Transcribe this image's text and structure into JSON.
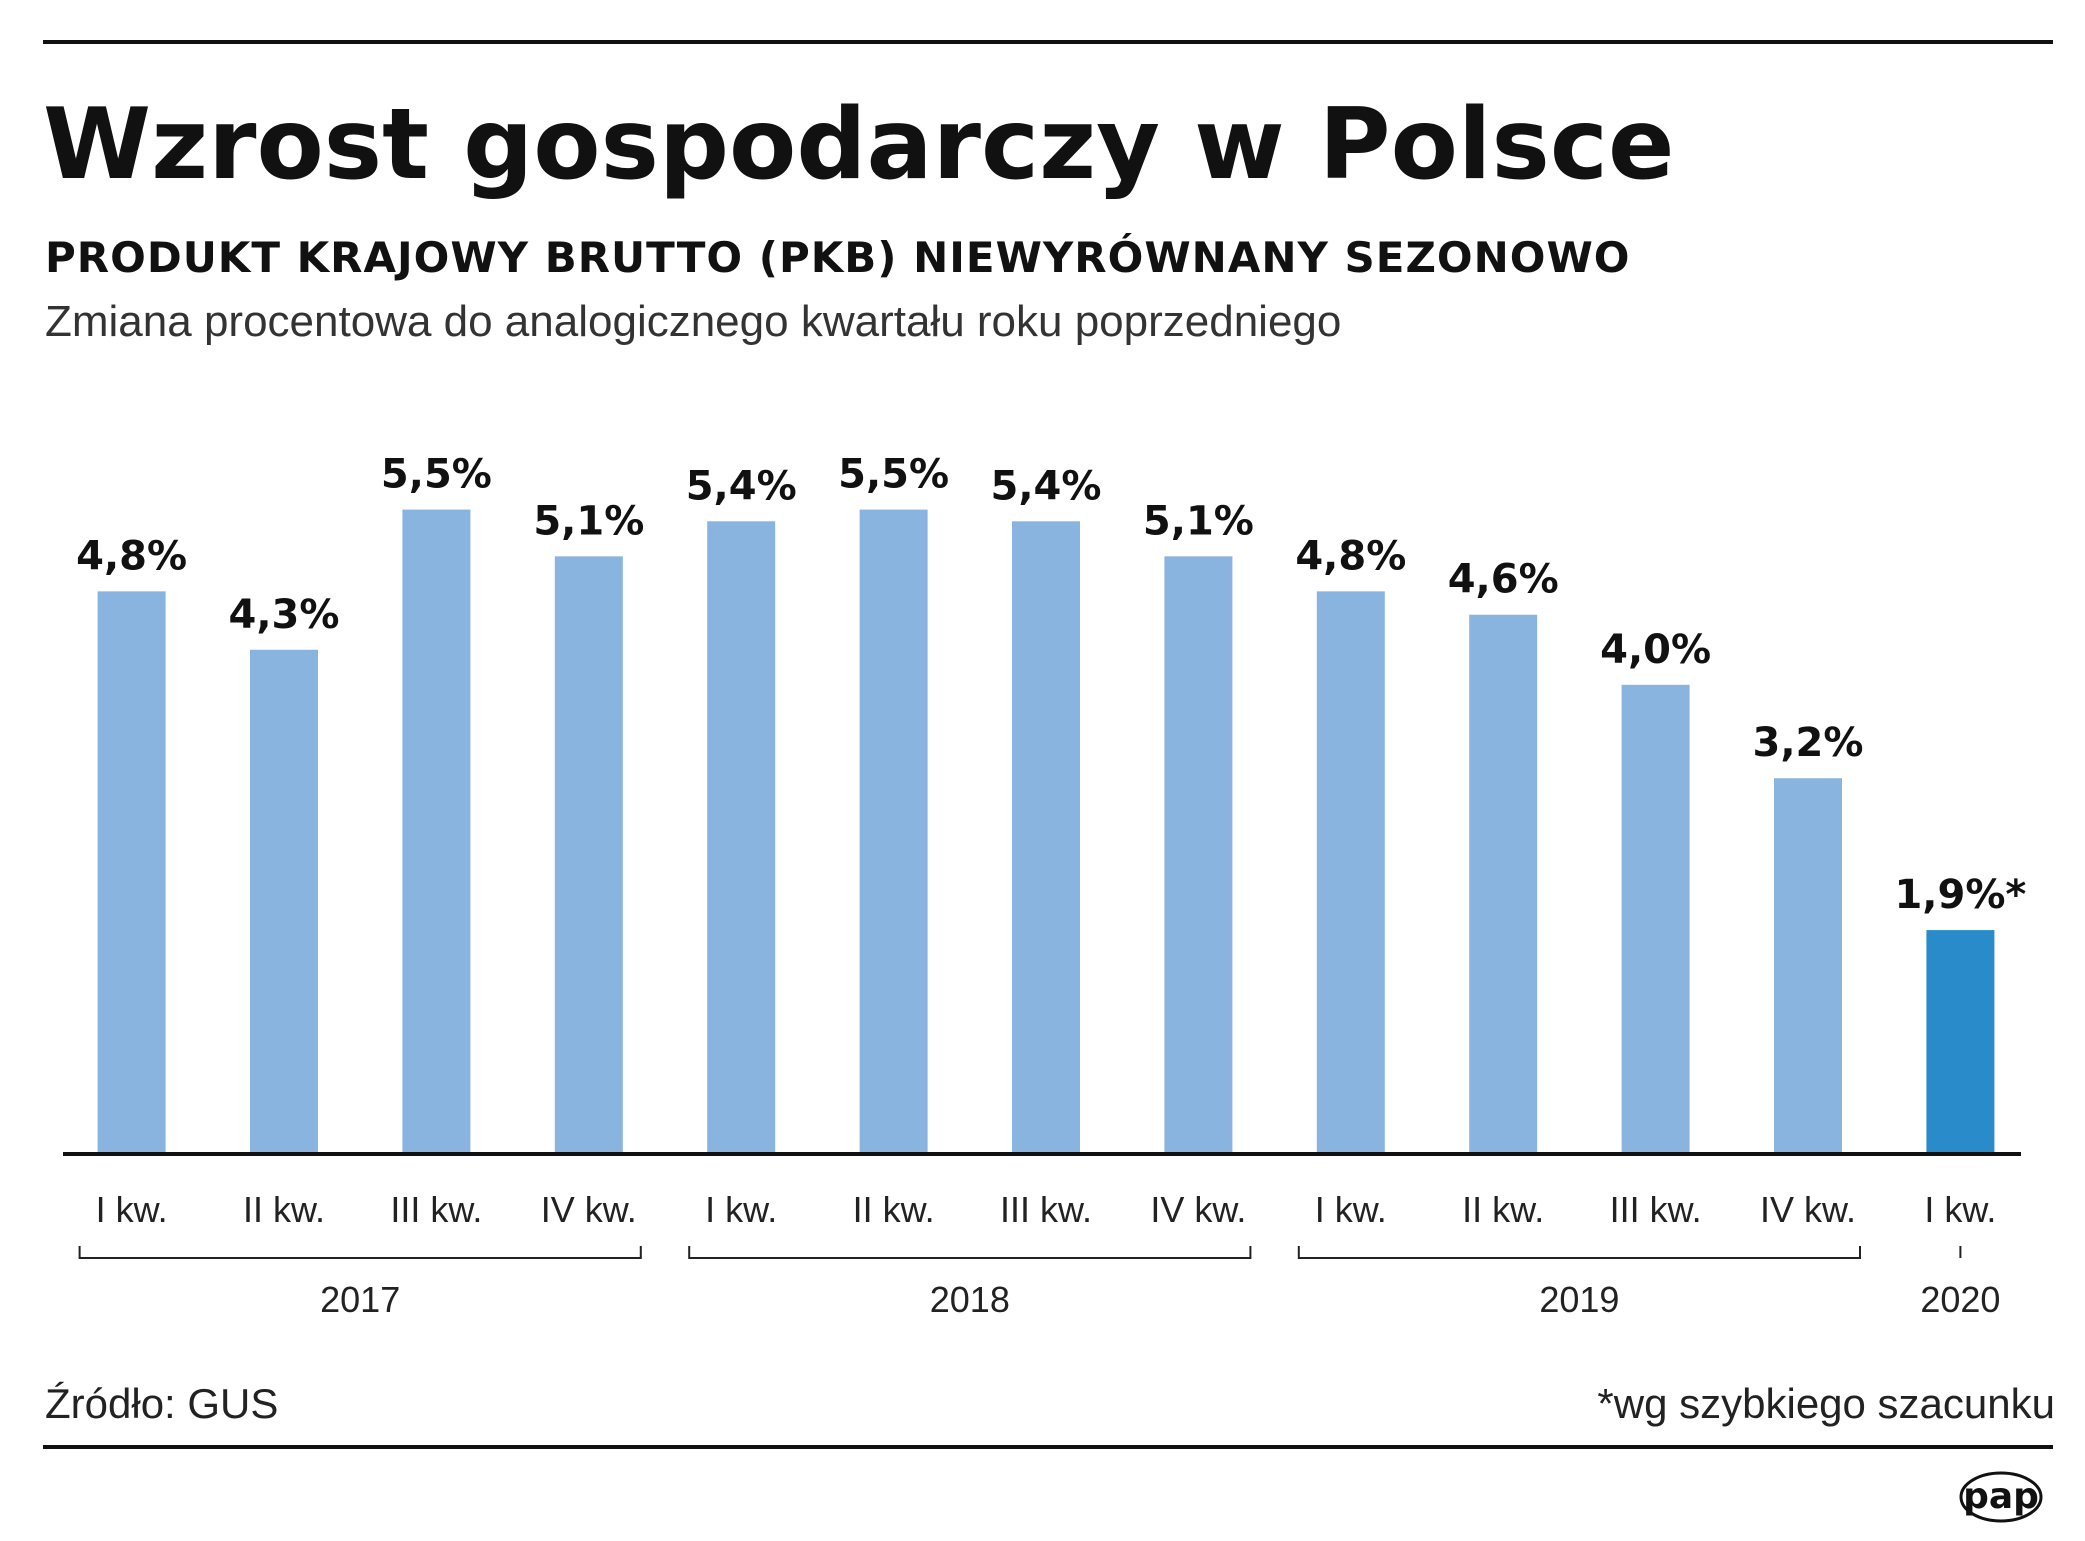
{
  "chart_data": {
    "type": "bar",
    "title": "Wzrost gospodarczy w Polsce",
    "subtitle": "PRODUKT KRAJOWY BRUTTO (PKB) NIEWYRÓWNANY SEZONOWO",
    "description": "Zmiana procentowa do analogicznego kwartału roku poprzedniego",
    "categories": [
      "I kw.",
      "II kw.",
      "III kw.",
      "IV kw.",
      "I kw.",
      "II kw.",
      "III kw.",
      "IV kw.",
      "I kw.",
      "II kw.",
      "III kw.",
      "IV kw.",
      "I kw."
    ],
    "values": [
      4.8,
      4.3,
      5.5,
      5.1,
      5.4,
      5.5,
      5.4,
      5.1,
      4.8,
      4.6,
      4.0,
      3.2,
      1.9
    ],
    "value_labels": [
      "4,8%",
      "4,3%",
      "5,5%",
      "5,1%",
      "5,4%",
      "5,5%",
      "5,4%",
      "5,1%",
      "4,8%",
      "4,6%",
      "4,0%",
      "3,2%",
      "1,9%*"
    ],
    "groups": [
      {
        "label": "2017",
        "count": 4
      },
      {
        "label": "2018",
        "count": 4
      },
      {
        "label": "2019",
        "count": 4
      },
      {
        "label": "2020",
        "count": 1
      }
    ],
    "ylim": [
      0,
      6
    ],
    "grid": false,
    "colors": {
      "bar": "#8ab4e0",
      "highlight": "#2a8bcb"
    },
    "highlight_index": 12
  },
  "footer": {
    "source": "Źródło: GUS",
    "note": "*wg szybkiego szacunku",
    "logo": "pap"
  }
}
